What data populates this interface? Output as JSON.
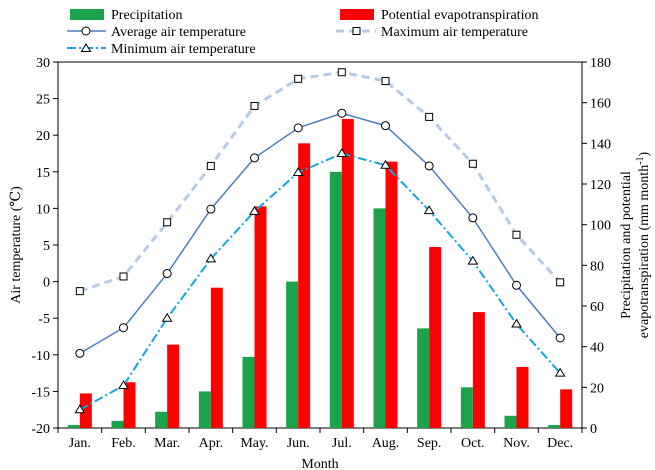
{
  "chart_data": {
    "type": "bar",
    "categories": [
      "Jan.",
      "Feb.",
      "Mar.",
      "Apr.",
      "May.",
      "Jun.",
      "Jul.",
      "Aug.",
      "Sep.",
      "Oct.",
      "Nov.",
      "Dec."
    ],
    "xlabel": "Month",
    "ylabel_left": "Air temperature (℃)",
    "ylabel_right_line1": "Precipitation and potential",
    "ylabel_right_line2": "evapotranspiration (mm month",
    "ylabel_right_superscript": "-1",
    "ylabel_right_line2_end": ")",
    "ylim_left": [
      -20,
      30
    ],
    "ylim_right": [
      0,
      180
    ],
    "yticks_left": [
      "-20",
      "-15",
      "-10",
      "-5",
      "0",
      "5",
      "10",
      "15",
      "20",
      "25",
      "30"
    ],
    "yticks_right": [
      "0",
      "20",
      "40",
      "60",
      "80",
      "100",
      "120",
      "140",
      "160",
      "180"
    ],
    "grid": false,
    "legend_position": "top",
    "bar_series": [
      {
        "name": "Precipitation",
        "axis": "right",
        "color": "#1aa34a",
        "values": [
          1.5,
          3.5,
          8.0,
          18.0,
          35.0,
          72.0,
          126.0,
          108.0,
          49.0,
          20.0,
          6.0,
          1.5
        ]
      },
      {
        "name": "Potential evapotranspiration",
        "axis": "right",
        "color": "#ff0000",
        "values": [
          17.0,
          22.5,
          41.0,
          69.0,
          109.0,
          140.0,
          152.0,
          131.0,
          89.0,
          57.0,
          30.0,
          19.0
        ]
      }
    ],
    "line_series": [
      {
        "name": "Average air temperature",
        "axis": "left",
        "color": "#4a7fc1",
        "style": "solid",
        "marker": "circle",
        "values": [
          -9.8,
          -6.3,
          1.1,
          9.9,
          16.9,
          21.0,
          23.0,
          21.3,
          15.8,
          8.7,
          -0.5,
          -7.7
        ]
      },
      {
        "name": "Maximum air temperature",
        "axis": "left",
        "color": "#b7cbe6",
        "style": "dash",
        "marker": "square",
        "values": [
          -1.3,
          0.7,
          8.1,
          15.8,
          24.0,
          27.7,
          28.6,
          27.4,
          22.5,
          16.1,
          6.4,
          -0.1
        ]
      },
      {
        "name": "Minimum air temperature",
        "axis": "left",
        "color": "#13a7e0",
        "style": "dashdot",
        "marker": "triangle",
        "values": [
          -17.5,
          -14.2,
          -5.0,
          3.1,
          9.6,
          14.9,
          17.5,
          15.9,
          9.7,
          2.8,
          -5.8,
          -12.5
        ]
      }
    ]
  },
  "legend": {
    "precipitation": "Precipitation",
    "pet": "Potential evapotranspiration",
    "avg": "Average air temperature",
    "max": "Maximum air temperature",
    "min": "Minimum air temperature"
  }
}
